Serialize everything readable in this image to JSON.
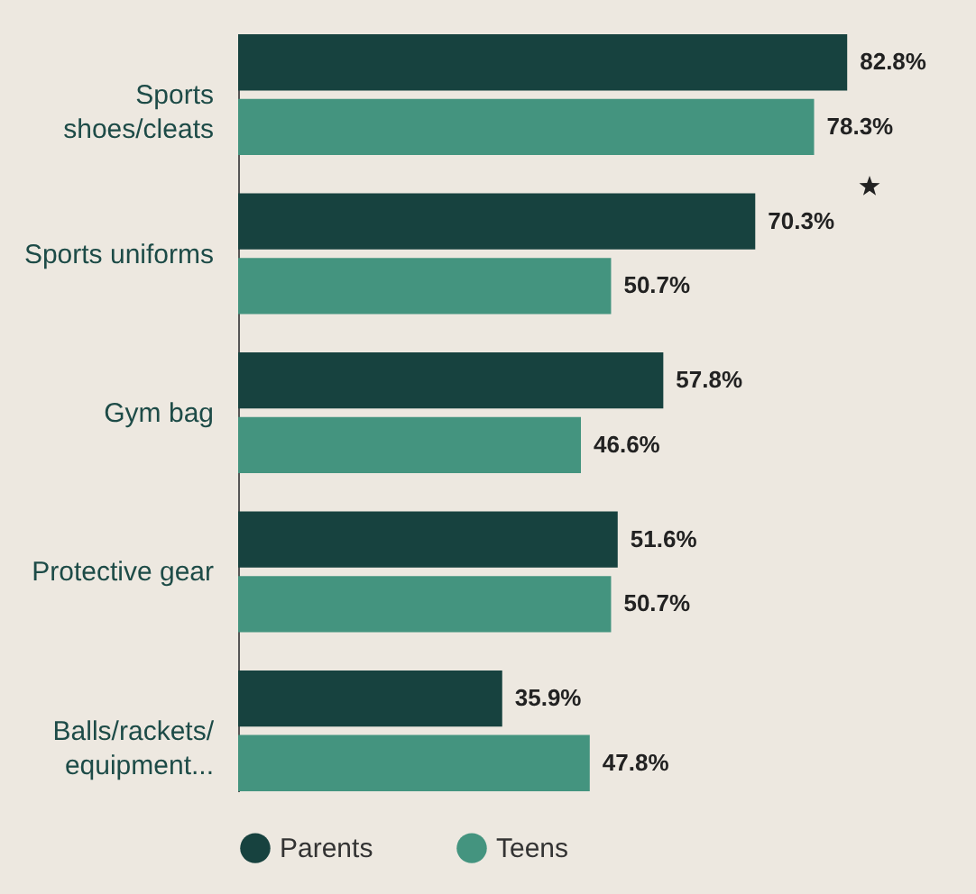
{
  "chart_data": {
    "type": "bar",
    "orientation": "horizontal",
    "categories": [
      "Sports shoes/cleats",
      "Sports uniforms",
      "Gym bag",
      "Protective gear",
      "Balls/rackets/equipment..."
    ],
    "series": [
      {
        "name": "Parents",
        "color": "#17423f",
        "values": [
          82.8,
          70.3,
          57.8,
          51.6,
          35.9
        ],
        "value_labels": [
          "82.8%",
          "70.3%",
          "57.8%",
          "51.6%",
          "35.9%"
        ]
      },
      {
        "name": "Teens",
        "color": "#44947f",
        "values": [
          78.3,
          50.7,
          46.6,
          50.7,
          47.8
        ],
        "value_labels": [
          "78.3%",
          "50.7%",
          "46.6%",
          "50.7%",
          "47.8%"
        ]
      }
    ],
    "legend": "bottom",
    "grid": false
  }
}
